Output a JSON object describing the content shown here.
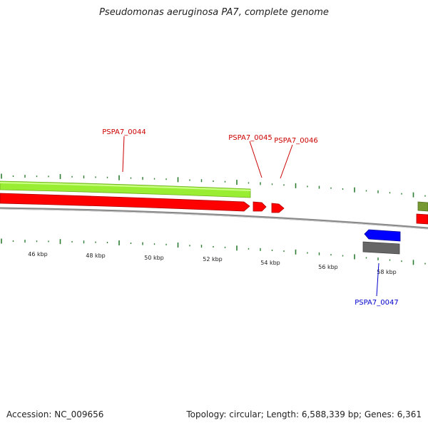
{
  "title": "Pseudomonas aeruginosa PA7, complete genome",
  "footer": {
    "accession_label": "Accession:",
    "accession": "NC_009656",
    "topology_label": "Topology:",
    "topology": "circular",
    "length_label": "Length:",
    "length": "6,588,339 bp",
    "genes_label": "Genes:",
    "genes": "6,361"
  },
  "scale_labels": [
    "46 kbp",
    "48 kbp",
    "50 kbp",
    "52 kbp",
    "54 kbp",
    "56 kbp",
    "58 kbp"
  ],
  "gene_labels": [
    {
      "name": "PSPA7_0044",
      "color": "#cc0000"
    },
    {
      "name": "PSPA7_0045",
      "color": "#cc0000"
    },
    {
      "name": "PSPA7_0046",
      "color": "#cc0000"
    },
    {
      "name": "PSPA7_0047",
      "color": "#0000cc"
    }
  ],
  "colors": {
    "forward_cds": "#ff0000",
    "reverse_cds": "#0000ff",
    "gene_track": "#99ee33",
    "gene_track_right": "#779933",
    "backbone": "#777777",
    "ticks": "#2e7d32",
    "reverse_gene": "#666666"
  }
}
